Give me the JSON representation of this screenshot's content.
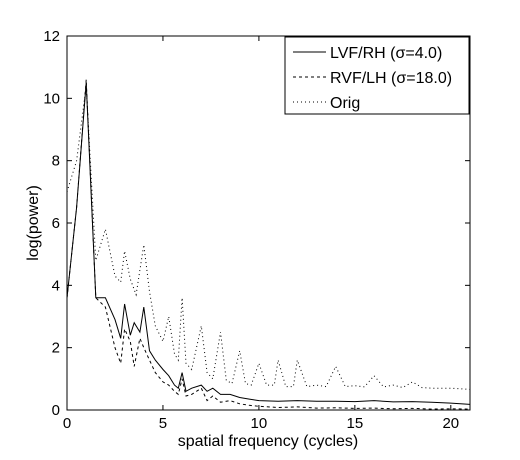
{
  "chart_data": {
    "type": "line",
    "title": "",
    "xlabel": "spatial frequency (cycles)",
    "ylabel": "log(power)",
    "xlim": [
      0,
      21
    ],
    "ylim": [
      0,
      12
    ],
    "xticks": [
      "0",
      "5",
      "10",
      "15",
      "20"
    ],
    "yticks": [
      "0",
      "2",
      "4",
      "6",
      "8",
      "10",
      "12"
    ],
    "grid": false,
    "legend_position": "top-right",
    "series": [
      {
        "name": "LVF/RH (σ=4.0)",
        "style": "solid",
        "points": [
          [
            0,
            3.6
          ],
          [
            0.5,
            6.5
          ],
          [
            1,
            10.5
          ],
          [
            1.5,
            3.6
          ],
          [
            2,
            3.6
          ],
          [
            2.5,
            2.9
          ],
          [
            2.8,
            2.3
          ],
          [
            3,
            3.4
          ],
          [
            3.3,
            2.4
          ],
          [
            3.5,
            2.8
          ],
          [
            3.8,
            2.5
          ],
          [
            4,
            3.3
          ],
          [
            4.3,
            1.9
          ],
          [
            4.6,
            1.6
          ],
          [
            5,
            1.3
          ],
          [
            5.3,
            1.1
          ],
          [
            5.6,
            0.8
          ],
          [
            5.8,
            0.7
          ],
          [
            6,
            1.2
          ],
          [
            6.2,
            0.6
          ],
          [
            6.5,
            0.7
          ],
          [
            7,
            0.8
          ],
          [
            7.3,
            0.6
          ],
          [
            7.6,
            0.7
          ],
          [
            8,
            0.5
          ],
          [
            8.5,
            0.5
          ],
          [
            9,
            0.4
          ],
          [
            9.5,
            0.35
          ],
          [
            10,
            0.3
          ],
          [
            11,
            0.28
          ],
          [
            12,
            0.3
          ],
          [
            13,
            0.28
          ],
          [
            14,
            0.28
          ],
          [
            15,
            0.27
          ],
          [
            16,
            0.3
          ],
          [
            17,
            0.26
          ],
          [
            18,
            0.27
          ],
          [
            19,
            0.25
          ],
          [
            20,
            0.22
          ],
          [
            20.5,
            0.2
          ],
          [
            21,
            0.18
          ]
        ]
      },
      {
        "name": "RVF/LH (σ=18.0)",
        "style": "dashed",
        "points": [
          [
            0,
            3.6
          ],
          [
            0.5,
            6.5
          ],
          [
            1,
            10.6
          ],
          [
            1.5,
            3.6
          ],
          [
            2,
            3.3
          ],
          [
            2.5,
            2.0
          ],
          [
            2.8,
            1.5
          ],
          [
            3,
            2.6
          ],
          [
            3.3,
            2.2
          ],
          [
            3.5,
            1.4
          ],
          [
            3.8,
            2.3
          ],
          [
            4,
            2.0
          ],
          [
            4.3,
            1.6
          ],
          [
            4.6,
            1.2
          ],
          [
            5,
            0.9
          ],
          [
            5.3,
            0.8
          ],
          [
            5.6,
            0.6
          ],
          [
            5.8,
            0.5
          ],
          [
            6,
            1.0
          ],
          [
            6.2,
            0.45
          ],
          [
            6.5,
            0.5
          ],
          [
            7,
            0.7
          ],
          [
            7.3,
            0.3
          ],
          [
            7.6,
            0.45
          ],
          [
            8,
            0.25
          ],
          [
            8.5,
            0.3
          ],
          [
            9,
            0.2
          ],
          [
            9.5,
            0.15
          ],
          [
            10,
            0.12
          ],
          [
            11,
            0.08
          ],
          [
            12,
            0.1
          ],
          [
            13,
            0.06
          ],
          [
            14,
            0.07
          ],
          [
            15,
            0.05
          ],
          [
            16,
            0.06
          ],
          [
            17,
            0.04
          ],
          [
            18,
            0.05
          ],
          [
            19,
            0.03
          ],
          [
            20,
            0.04
          ],
          [
            21,
            0.03
          ]
        ]
      },
      {
        "name": "Orig",
        "style": "dotted",
        "points": [
          [
            0,
            7.0
          ],
          [
            0.5,
            8.0
          ],
          [
            1,
            10.4
          ],
          [
            1.5,
            4.8
          ],
          [
            2,
            5.8
          ],
          [
            2.5,
            4.3
          ],
          [
            2.8,
            4.1
          ],
          [
            3,
            5.1
          ],
          [
            3.3,
            4.2
          ],
          [
            3.6,
            3.7
          ],
          [
            4,
            5.3
          ],
          [
            4.3,
            3.8
          ],
          [
            4.6,
            2.7
          ],
          [
            5,
            2.2
          ],
          [
            5.3,
            3.0
          ],
          [
            5.6,
            1.8
          ],
          [
            5.8,
            1.6
          ],
          [
            6,
            3.6
          ],
          [
            6.2,
            1.5
          ],
          [
            6.5,
            1.3
          ],
          [
            7,
            2.7
          ],
          [
            7.3,
            1.2
          ],
          [
            7.6,
            1.0
          ],
          [
            8,
            2.5
          ],
          [
            8.3,
            0.95
          ],
          [
            8.6,
            0.85
          ],
          [
            9,
            1.9
          ],
          [
            9.3,
            0.85
          ],
          [
            9.6,
            0.8
          ],
          [
            10,
            1.5
          ],
          [
            10.4,
            0.8
          ],
          [
            10.8,
            0.8
          ],
          [
            11,
            1.6
          ],
          [
            11.4,
            0.75
          ],
          [
            11.8,
            0.75
          ],
          [
            12,
            1.6
          ],
          [
            12.5,
            0.75
          ],
          [
            13,
            0.8
          ],
          [
            13.5,
            0.75
          ],
          [
            14,
            1.4
          ],
          [
            14.5,
            0.75
          ],
          [
            15,
            0.78
          ],
          [
            15.5,
            0.74
          ],
          [
            16,
            1.1
          ],
          [
            16.5,
            0.74
          ],
          [
            17,
            0.8
          ],
          [
            17.5,
            0.72
          ],
          [
            18,
            0.9
          ],
          [
            18.5,
            0.72
          ],
          [
            19,
            0.7
          ],
          [
            19.5,
            0.7
          ],
          [
            20,
            0.7
          ],
          [
            20.5,
            0.68
          ],
          [
            21,
            0.66
          ]
        ]
      }
    ]
  }
}
